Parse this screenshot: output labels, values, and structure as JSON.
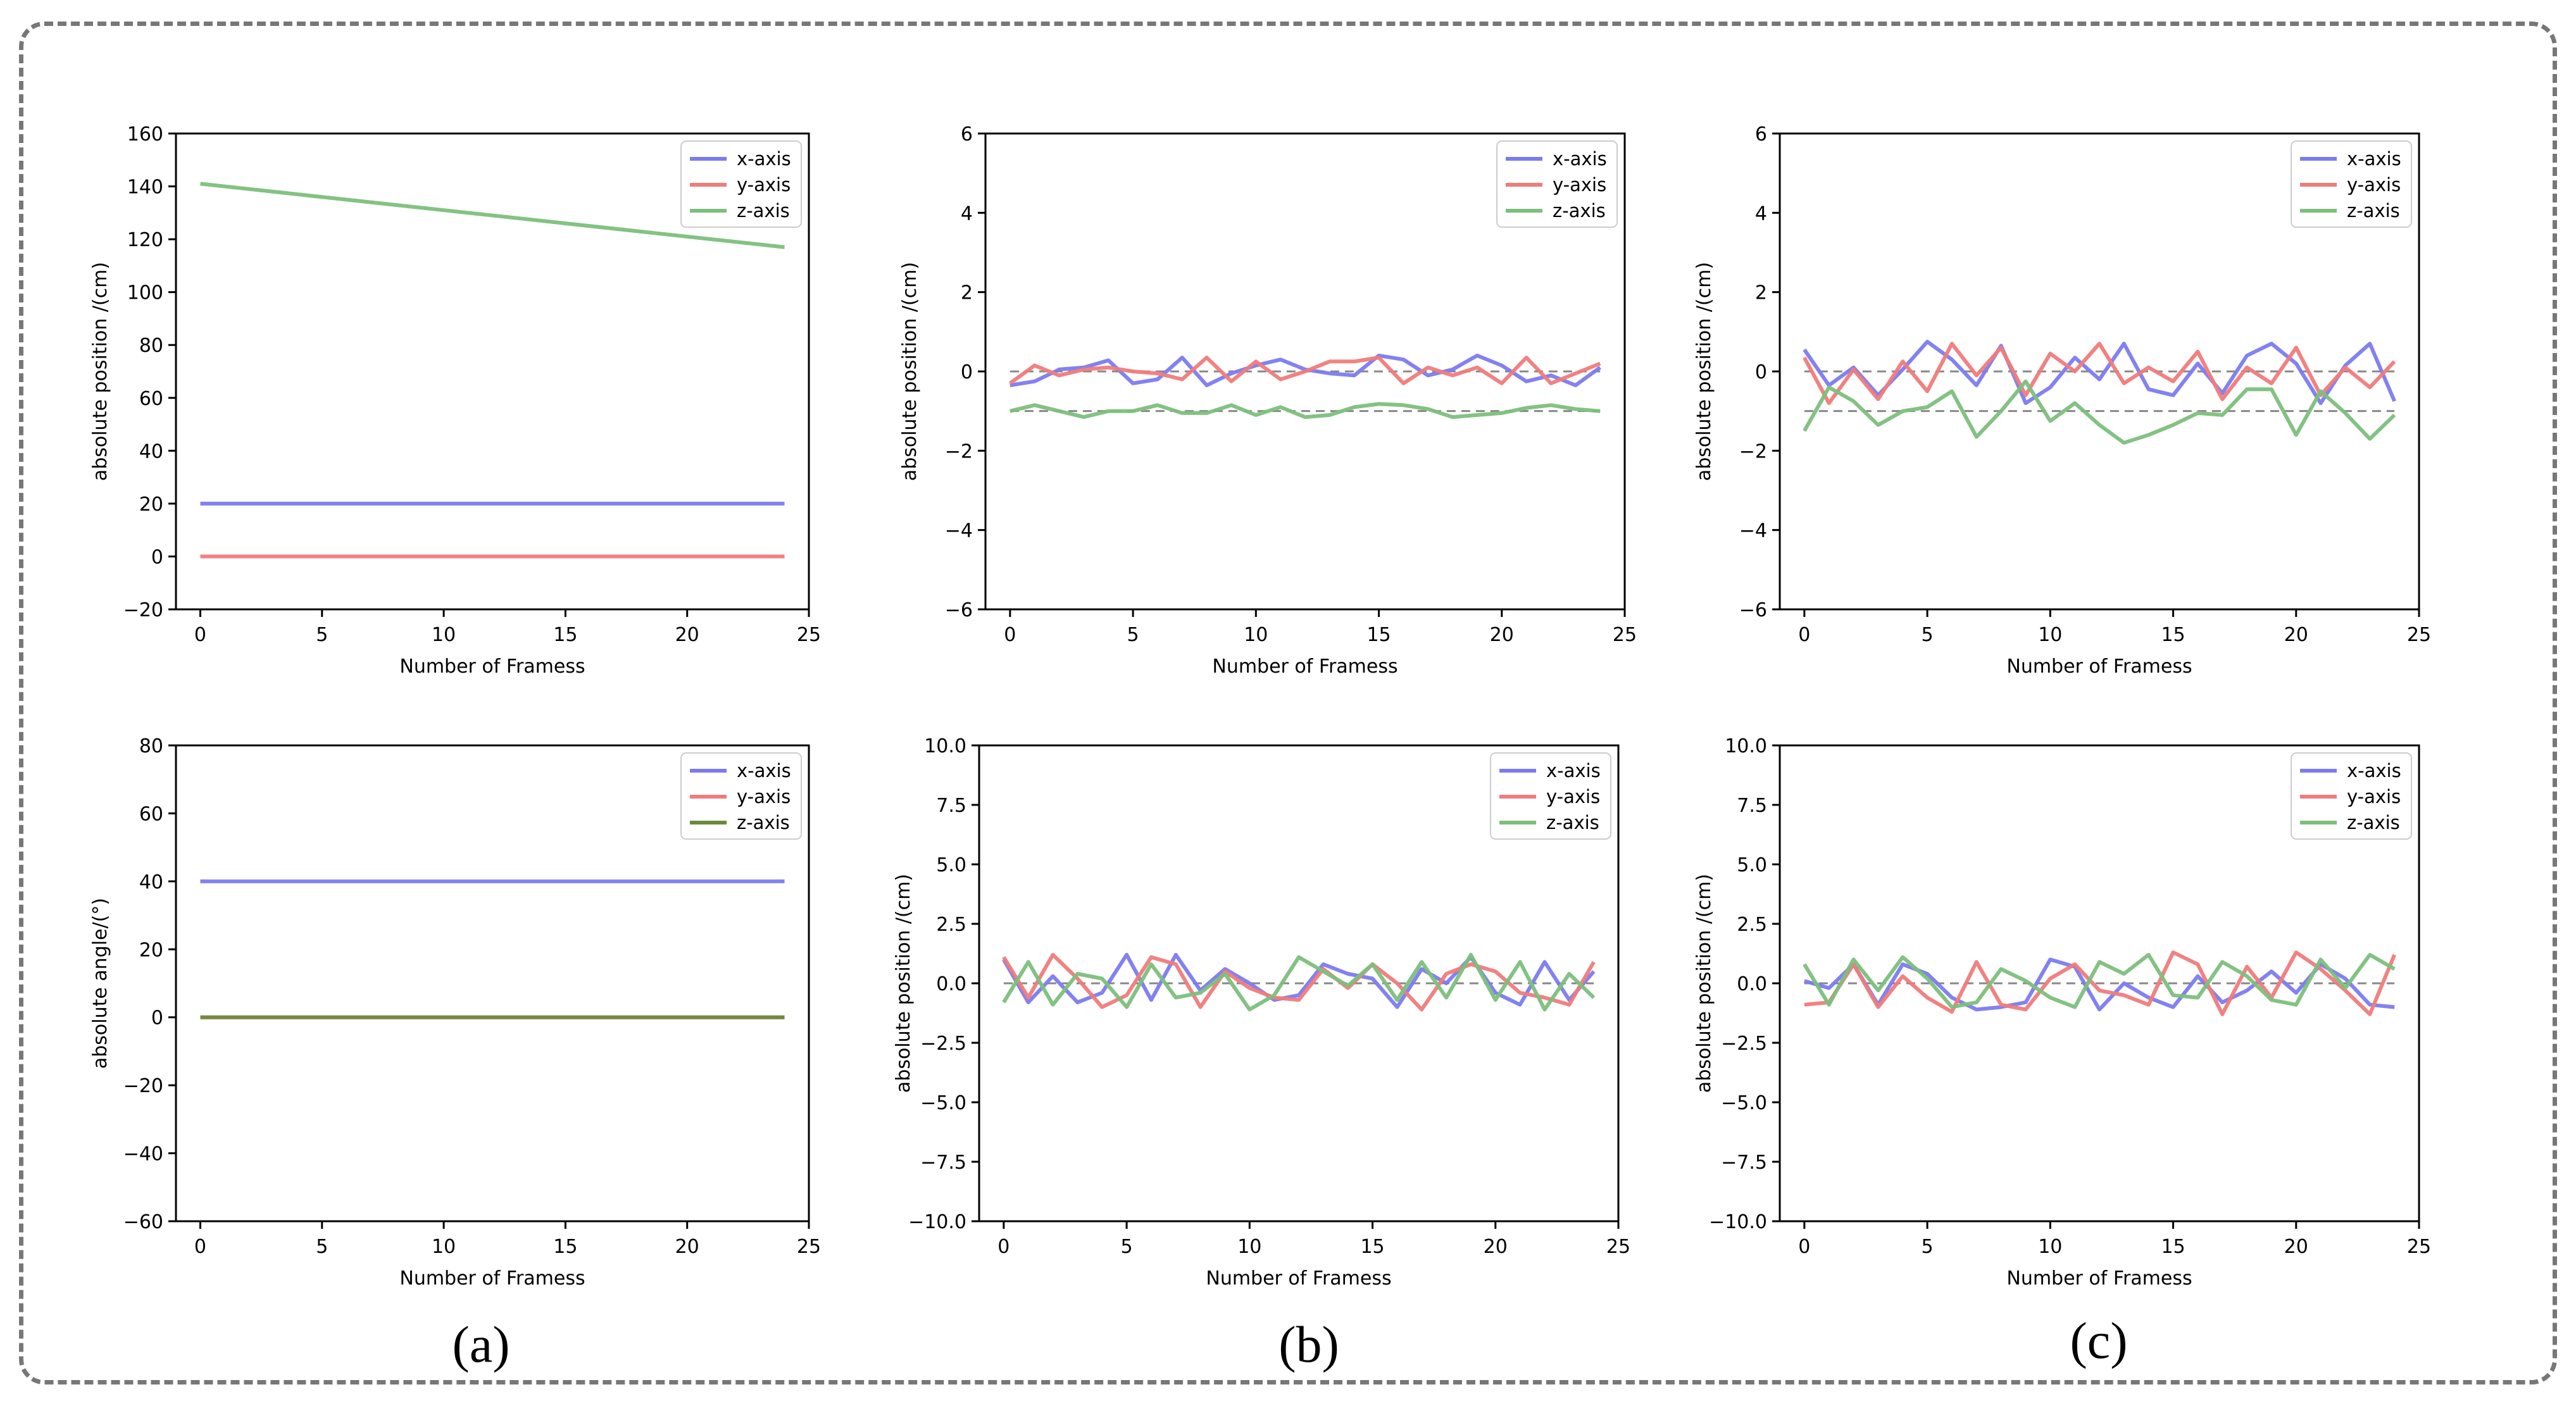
{
  "figure": {
    "panel_labels": [
      "(a)",
      "(b)",
      "(c)"
    ]
  },
  "chart_data": [
    {
      "type": "line",
      "name": "a-top",
      "xlabel": "Number of Framess",
      "ylabel": "absolute position /(cm)",
      "xlim": [
        -1,
        25
      ],
      "ylim": [
        -20,
        160
      ],
      "xticks": [
        0,
        5,
        10,
        15,
        20,
        25
      ],
      "yticks": [
        -20,
        0,
        20,
        40,
        60,
        80,
        100,
        120,
        140,
        160
      ],
      "ytick_labels": [
        "−20",
        "0",
        "20",
        "40",
        "60",
        "80",
        "100",
        "120",
        "140",
        "160"
      ],
      "legend": "upper right",
      "refs": [],
      "series": [
        {
          "name": "x-axis",
          "color": "#7b7bf0",
          "x": [
            0,
            24
          ],
          "values": [
            20,
            20
          ]
        },
        {
          "name": "y-axis",
          "color": "#f07b7b",
          "x": [
            0,
            24
          ],
          "values": [
            0,
            0
          ]
        },
        {
          "name": "z-axis",
          "color": "#7cbf7c",
          "x": [
            0,
            24
          ],
          "values": [
            141,
            117
          ]
        }
      ]
    },
    {
      "type": "line",
      "name": "b-top",
      "xlabel": "Number of Framess",
      "ylabel": "absolute position /(cm)",
      "xlim": [
        -1,
        25
      ],
      "ylim": [
        -6,
        6
      ],
      "xticks": [
        0,
        5,
        10,
        15,
        20,
        25
      ],
      "yticks": [
        -6,
        -4,
        -2,
        0,
        2,
        4,
        6
      ],
      "ytick_labels": [
        "−6",
        "−4",
        "−2",
        "0",
        "2",
        "4",
        "6"
      ],
      "legend": "upper right",
      "refs": [
        0,
        -1
      ],
      "series": [
        {
          "name": "x-axis",
          "color": "#7b7bf0",
          "x": [
            0,
            1,
            2,
            3,
            4,
            5,
            6,
            7,
            8,
            9,
            10,
            11,
            12,
            13,
            14,
            15,
            16,
            17,
            18,
            19,
            20,
            21,
            22,
            23,
            24
          ],
          "values": [
            -0.35,
            -0.25,
            0.05,
            0.1,
            0.28,
            -0.3,
            -0.2,
            0.35,
            -0.35,
            -0.05,
            0.15,
            0.3,
            0.05,
            -0.05,
            -0.1,
            0.4,
            0.3,
            -0.1,
            0.05,
            0.4,
            0.15,
            -0.25,
            -0.1,
            -0.35,
            0.1
          ]
        },
        {
          "name": "y-axis",
          "color": "#f07b7b",
          "x": [
            0,
            1,
            2,
            3,
            4,
            5,
            6,
            7,
            8,
            9,
            10,
            11,
            12,
            13,
            14,
            15,
            16,
            17,
            18,
            19,
            20,
            21,
            22,
            23,
            24
          ],
          "values": [
            -0.3,
            0.15,
            -0.1,
            0.05,
            0.1,
            0.0,
            -0.05,
            -0.2,
            0.35,
            -0.25,
            0.25,
            -0.2,
            0.0,
            0.25,
            0.25,
            0.35,
            -0.3,
            0.1,
            -0.1,
            0.1,
            -0.3,
            0.35,
            -0.3,
            -0.05,
            0.2
          ]
        },
        {
          "name": "z-axis",
          "color": "#7cbf7c",
          "x": [
            0,
            1,
            2,
            3,
            4,
            5,
            6,
            7,
            8,
            9,
            10,
            11,
            12,
            13,
            14,
            15,
            16,
            17,
            18,
            19,
            20,
            21,
            22,
            23,
            24
          ],
          "values": [
            -1.0,
            -0.85,
            -1.0,
            -1.15,
            -1.0,
            -1.0,
            -0.85,
            -1.05,
            -1.05,
            -0.85,
            -1.1,
            -0.9,
            -1.15,
            -1.1,
            -0.9,
            -0.82,
            -0.85,
            -0.95,
            -1.15,
            -1.1,
            -1.05,
            -0.92,
            -0.85,
            -0.95,
            -1.0
          ]
        }
      ]
    },
    {
      "type": "line",
      "name": "c-top",
      "xlabel": "Number of Framess",
      "ylabel": "absolute position /(cm)",
      "xlim": [
        -1,
        25
      ],
      "ylim": [
        -6,
        6
      ],
      "xticks": [
        0,
        5,
        10,
        15,
        20,
        25
      ],
      "yticks": [
        -6,
        -4,
        -2,
        0,
        2,
        4,
        6
      ],
      "ytick_labels": [
        "−6",
        "−4",
        "−2",
        "0",
        "2",
        "4",
        "6"
      ],
      "legend": "upper right",
      "refs": [
        0,
        -1
      ],
      "series": [
        {
          "name": "x-axis",
          "color": "#7b7bf0",
          "x": [
            0,
            1,
            2,
            3,
            4,
            5,
            6,
            7,
            8,
            9,
            10,
            11,
            12,
            13,
            14,
            15,
            16,
            17,
            18,
            19,
            20,
            21,
            22,
            23,
            24
          ],
          "values": [
            0.55,
            -0.35,
            0.1,
            -0.6,
            0.05,
            0.75,
            0.3,
            -0.35,
            0.65,
            -0.8,
            -0.4,
            0.35,
            -0.2,
            0.7,
            -0.45,
            -0.6,
            0.2,
            -0.55,
            0.4,
            0.7,
            0.2,
            -0.8,
            0.15,
            0.7,
            -0.75
          ]
        },
        {
          "name": "y-axis",
          "color": "#f07b7b",
          "x": [
            0,
            1,
            2,
            3,
            4,
            5,
            6,
            7,
            8,
            9,
            10,
            11,
            12,
            13,
            14,
            15,
            16,
            17,
            18,
            19,
            20,
            21,
            22,
            23,
            24
          ],
          "values": [
            0.35,
            -0.8,
            0.05,
            -0.7,
            0.25,
            -0.5,
            0.7,
            -0.1,
            0.6,
            -0.6,
            0.45,
            0.0,
            0.7,
            -0.3,
            0.1,
            -0.25,
            0.5,
            -0.7,
            0.1,
            -0.3,
            0.6,
            -0.6,
            0.1,
            -0.4,
            0.25
          ]
        },
        {
          "name": "z-axis",
          "color": "#7cbf7c",
          "x": [
            0,
            1,
            2,
            3,
            4,
            5,
            6,
            7,
            8,
            9,
            10,
            11,
            12,
            13,
            14,
            15,
            16,
            17,
            18,
            19,
            20,
            21,
            22,
            23,
            24
          ],
          "values": [
            -1.5,
            -0.4,
            -0.75,
            -1.35,
            -1.0,
            -0.9,
            -0.5,
            -1.65,
            -1.0,
            -0.25,
            -1.25,
            -0.8,
            -1.35,
            -1.8,
            -1.6,
            -1.35,
            -1.05,
            -1.1,
            -0.45,
            -0.45,
            -1.6,
            -0.5,
            -1.05,
            -1.7,
            -1.1
          ]
        }
      ]
    },
    {
      "type": "line",
      "name": "a-bottom",
      "xlabel": "Number of Framess",
      "ylabel": "absolute angle/(°)",
      "xlim": [
        -1,
        25
      ],
      "ylim": [
        -60,
        80
      ],
      "xticks": [
        0,
        5,
        10,
        15,
        20,
        25
      ],
      "yticks": [
        -60,
        -40,
        -20,
        0,
        20,
        40,
        60,
        80
      ],
      "ytick_labels": [
        "−60",
        "−40",
        "−20",
        "0",
        "20",
        "40",
        "60",
        "80"
      ],
      "legend": "upper right",
      "refs": [],
      "series": [
        {
          "name": "x-axis",
          "color": "#7b7bf0",
          "x": [
            0,
            24
          ],
          "values": [
            40,
            40
          ]
        },
        {
          "name": "y-axis",
          "color": "#f07b7b",
          "x": [
            0,
            24
          ],
          "values": [
            0,
            0
          ]
        },
        {
          "name": "z-axis",
          "color": "#6b8a3a",
          "x": [
            0,
            24
          ],
          "values": [
            0,
            0
          ]
        }
      ]
    },
    {
      "type": "line",
      "name": "b-bottom",
      "xlabel": "Number of Framess",
      "ylabel": "absolute position /(cm)",
      "xlim": [
        -1,
        25
      ],
      "ylim": [
        -10,
        10
      ],
      "xticks": [
        0,
        5,
        10,
        15,
        20,
        25
      ],
      "yticks": [
        -10,
        -7.5,
        -5,
        -2.5,
        0,
        2.5,
        5,
        7.5,
        10
      ],
      "ytick_labels": [
        "−10.0",
        "−7.5",
        "−5.0",
        "−2.5",
        "0.0",
        "2.5",
        "5.0",
        "7.5",
        "10.0"
      ],
      "legend": "upper right",
      "refs": [
        0
      ],
      "series": [
        {
          "name": "x-axis",
          "color": "#7b7bf0",
          "x": [
            0,
            1,
            2,
            3,
            4,
            5,
            6,
            7,
            8,
            9,
            10,
            11,
            12,
            13,
            14,
            15,
            16,
            17,
            18,
            19,
            20,
            21,
            22,
            23,
            24
          ],
          "values": [
            1.0,
            -0.8,
            0.3,
            -0.8,
            -0.4,
            1.2,
            -0.7,
            1.2,
            -0.3,
            0.6,
            0.0,
            -0.7,
            -0.5,
            0.8,
            0.4,
            0.2,
            -1.0,
            0.6,
            0.0,
            1.1,
            -0.4,
            -0.9,
            0.9,
            -0.7,
            0.5
          ]
        },
        {
          "name": "y-axis",
          "color": "#f07b7b",
          "x": [
            0,
            1,
            2,
            3,
            4,
            5,
            6,
            7,
            8,
            9,
            10,
            11,
            12,
            13,
            14,
            15,
            16,
            17,
            18,
            19,
            20,
            21,
            22,
            23,
            24
          ],
          "values": [
            1.1,
            -0.6,
            1.2,
            0.2,
            -1.0,
            -0.5,
            1.1,
            0.8,
            -1.0,
            0.5,
            -0.2,
            -0.6,
            -0.7,
            0.6,
            -0.2,
            0.8,
            0.0,
            -1.1,
            0.4,
            0.8,
            0.5,
            -0.4,
            -0.6,
            -0.9,
            0.9
          ]
        },
        {
          "name": "z-axis",
          "color": "#7cbf7c",
          "x": [
            0,
            1,
            2,
            3,
            4,
            5,
            6,
            7,
            8,
            9,
            10,
            11,
            12,
            13,
            14,
            15,
            16,
            17,
            18,
            19,
            20,
            21,
            22,
            23,
            24
          ],
          "values": [
            -0.8,
            0.9,
            -0.9,
            0.4,
            0.2,
            -1.0,
            0.8,
            -0.6,
            -0.4,
            0.4,
            -1.1,
            -0.5,
            1.1,
            0.5,
            -0.1,
            0.8,
            -0.7,
            0.9,
            -0.6,
            1.2,
            -0.7,
            0.9,
            -1.1,
            0.4,
            -0.6
          ]
        }
      ]
    },
    {
      "type": "line",
      "name": "c-bottom",
      "xlabel": "Number of Framess",
      "ylabel": "absolute position /(cm)",
      "xlim": [
        -1,
        25
      ],
      "ylim": [
        -10,
        10
      ],
      "xticks": [
        0,
        5,
        10,
        15,
        20,
        25
      ],
      "yticks": [
        -10,
        -7.5,
        -5,
        -2.5,
        0,
        2.5,
        5,
        7.5,
        10
      ],
      "ytick_labels": [
        "−10.0",
        "−7.5",
        "−5.0",
        "−2.5",
        "0.0",
        "2.5",
        "5.0",
        "7.5",
        "10.0"
      ],
      "legend": "upper right",
      "refs": [
        0
      ],
      "series": [
        {
          "name": "x-axis",
          "color": "#7b7bf0",
          "x": [
            0,
            1,
            2,
            3,
            4,
            5,
            6,
            7,
            8,
            9,
            10,
            11,
            12,
            13,
            14,
            15,
            16,
            17,
            18,
            19,
            20,
            21,
            22,
            23,
            24
          ],
          "values": [
            0.1,
            -0.2,
            0.8,
            -0.9,
            0.8,
            0.4,
            -0.6,
            -1.1,
            -1.0,
            -0.8,
            1.0,
            0.7,
            -1.1,
            0.0,
            -0.6,
            -1.0,
            0.3,
            -0.8,
            -0.3,
            0.5,
            -0.4,
            0.8,
            0.2,
            -0.9,
            -1.0
          ]
        },
        {
          "name": "y-axis",
          "color": "#f07b7b",
          "x": [
            0,
            1,
            2,
            3,
            4,
            5,
            6,
            7,
            8,
            9,
            10,
            11,
            12,
            13,
            14,
            15,
            16,
            17,
            18,
            19,
            20,
            21,
            22,
            23,
            24
          ],
          "values": [
            -0.9,
            -0.8,
            0.8,
            -1.0,
            0.3,
            -0.6,
            -1.2,
            0.9,
            -0.9,
            -1.1,
            0.2,
            0.8,
            -0.3,
            -0.5,
            -0.9,
            1.3,
            0.8,
            -1.3,
            0.7,
            -0.6,
            1.3,
            0.6,
            -0.3,
            -1.3,
            1.2
          ]
        },
        {
          "name": "z-axis",
          "color": "#7cbf7c",
          "x": [
            0,
            1,
            2,
            3,
            4,
            5,
            6,
            7,
            8,
            9,
            10,
            11,
            12,
            13,
            14,
            15,
            16,
            17,
            18,
            19,
            20,
            21,
            22,
            23,
            24
          ],
          "values": [
            0.8,
            -0.9,
            1.0,
            -0.3,
            1.1,
            0.2,
            -1.0,
            -0.8,
            0.6,
            0.1,
            -0.6,
            -1.0,
            0.9,
            0.4,
            1.2,
            -0.5,
            -0.6,
            0.9,
            0.3,
            -0.7,
            -0.9,
            1.0,
            -0.2,
            1.2,
            0.6
          ]
        }
      ]
    }
  ]
}
